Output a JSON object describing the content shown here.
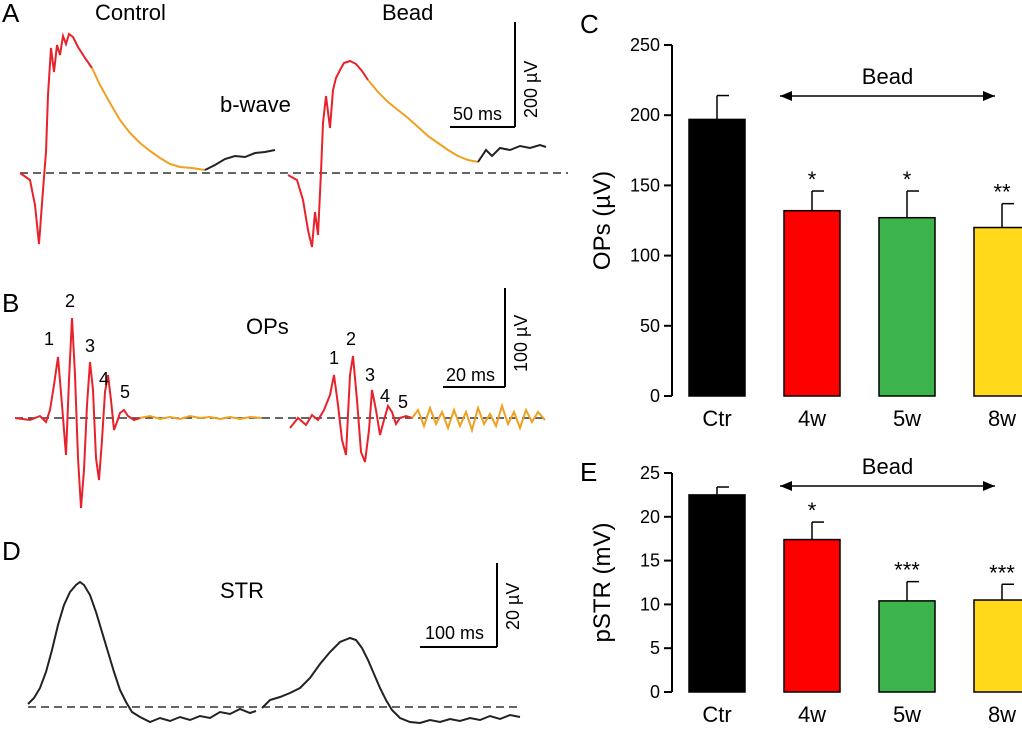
{
  "panels": {
    "A": {
      "letter": "A",
      "labels": {
        "control": "Control",
        "bead": "Bead",
        "bwave": "b-wave"
      },
      "scalebar": {
        "time": "50 ms",
        "amp": "200 µV"
      }
    },
    "B": {
      "letter": "B",
      "labels": {
        "title": "OPs"
      },
      "peak_numbers": [
        "1",
        "2",
        "3",
        "4",
        "5"
      ],
      "scalebar": {
        "time": "20 ms",
        "amp": "100 µV"
      }
    },
    "D": {
      "letter": "D",
      "labels": {
        "title": "STR"
      },
      "scalebar": {
        "time": "100 ms",
        "amp": "20 µV"
      }
    },
    "C": {
      "letter": "C",
      "range_label": "Bead"
    },
    "E": {
      "letter": "E",
      "range_label": "Bead"
    }
  },
  "colors": {
    "ctr": "#000000",
    "w4": "#ff0000",
    "w5": "#3cb44b",
    "w8": "#ffd91a",
    "trace_red": "#e8222a",
    "trace_orange": "#f0a020",
    "trace_black": "#222222"
  },
  "chart_data": [
    {
      "panel": "C",
      "type": "bar",
      "categories": [
        "Ctr",
        "4w",
        "5w",
        "8w"
      ],
      "values": [
        197,
        132,
        127,
        120
      ],
      "errors": [
        17,
        14,
        19,
        17
      ],
      "significance": [
        "",
        "*",
        "*",
        "**"
      ],
      "ylabel": "OPs (µV)",
      "ylim": [
        0,
        250
      ],
      "yticks": [
        0,
        50,
        100,
        150,
        200,
        250
      ]
    },
    {
      "panel": "E",
      "type": "bar",
      "categories": [
        "Ctr",
        "4w",
        "5w",
        "8w"
      ],
      "values": [
        22.5,
        17.4,
        10.4,
        10.5
      ],
      "errors": [
        0.9,
        2.0,
        2.2,
        1.8
      ],
      "significance": [
        "",
        "*",
        "***",
        "***"
      ],
      "ylabel": "pSTR (mV)",
      "ylim": [
        0,
        25
      ],
      "yticks": [
        0,
        5,
        10,
        15,
        20,
        25
      ]
    }
  ]
}
